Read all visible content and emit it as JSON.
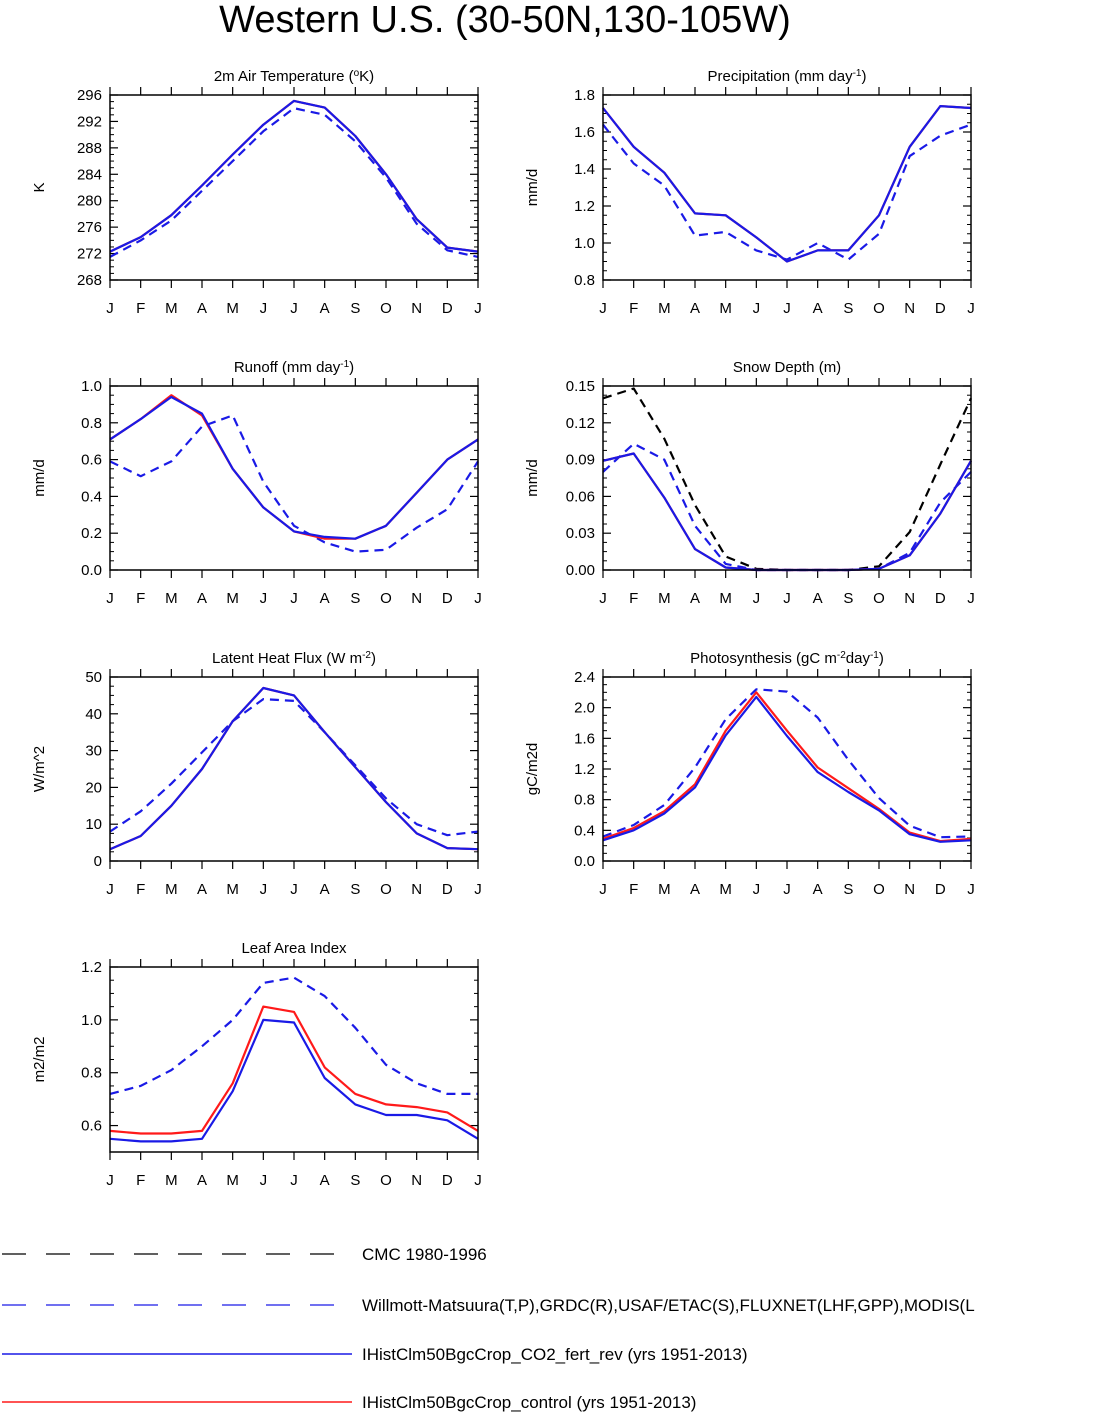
{
  "page": {
    "title": "Western U.S. (30-50N,130-105W)"
  },
  "months": [
    "J",
    "F",
    "M",
    "A",
    "M",
    "J",
    "J",
    "A",
    "S",
    "O",
    "N",
    "D",
    "J"
  ],
  "legend": [
    {
      "key": "cmc",
      "label": "CMC 1980-1996",
      "color": "#000000",
      "dash": true
    },
    {
      "key": "obs",
      "label": "Willmott-Matsuura(T,P),GRDC(R),USAF/ETAC(S),FLUXNET(LHF,GPP),MODIS(L",
      "color": "#1a1ae6",
      "dash": true
    },
    {
      "key": "co2",
      "label": "IHistClm50BgcCrop_CO2_fert_rev (yrs 1951-2013)",
      "color": "#1a1ae6",
      "dash": false
    },
    {
      "key": "ctl",
      "label": "IHistClm50BgcCrop_control (yrs 1951-2013)",
      "color": "#ff1a1a",
      "dash": false
    }
  ],
  "chart_data": [
    {
      "type": "line",
      "id": "temp",
      "title": "2m Air Temperature (",
      "title_sup": "o",
      "title_post": "K)",
      "ylabel": "K",
      "ylim": [
        268,
        296
      ],
      "yticks": [
        268,
        272,
        276,
        280,
        284,
        288,
        292,
        296
      ],
      "ydec": 0,
      "series": [
        {
          "key": "obs",
          "values": [
            271.5,
            274.0,
            277.0,
            281.5,
            286.0,
            290.5,
            294.0,
            293.0,
            289.0,
            283.5,
            276.5,
            272.5,
            271.5
          ]
        },
        {
          "key": "ctl",
          "values": [
            272.3,
            274.5,
            277.8,
            282.3,
            287.0,
            291.5,
            295.1,
            294.1,
            289.8,
            284.0,
            277.2,
            272.9,
            272.3
          ]
        },
        {
          "key": "co2",
          "values": [
            272.3,
            274.5,
            277.8,
            282.3,
            287.0,
            291.5,
            295.1,
            294.1,
            289.8,
            284.0,
            277.2,
            272.9,
            272.3
          ]
        }
      ]
    },
    {
      "type": "line",
      "id": "precip",
      "title": "Precipitation (mm day",
      "title_sup": "-1",
      "title_post": ")",
      "ylabel": "mm/d",
      "ylim": [
        0.8,
        1.8
      ],
      "yticks": [
        0.8,
        1.0,
        1.2,
        1.4,
        1.6,
        1.8
      ],
      "ydec": 1,
      "series": [
        {
          "key": "obs",
          "values": [
            1.64,
            1.43,
            1.31,
            1.04,
            1.06,
            0.96,
            0.91,
            1.0,
            0.91,
            1.05,
            1.47,
            1.58,
            1.64
          ]
        },
        {
          "key": "ctl",
          "values": [
            1.73,
            1.52,
            1.38,
            1.16,
            1.15,
            1.03,
            0.9,
            0.96,
            0.96,
            1.15,
            1.52,
            1.74,
            1.73
          ]
        },
        {
          "key": "co2",
          "values": [
            1.73,
            1.52,
            1.38,
            1.16,
            1.15,
            1.03,
            0.9,
            0.96,
            0.96,
            1.15,
            1.52,
            1.74,
            1.73
          ]
        }
      ]
    },
    {
      "type": "line",
      "id": "runoff",
      "title": "Runoff (mm day",
      "title_sup": "-1",
      "title_post": ")",
      "ylabel": "mm/d",
      "ylim": [
        0,
        1.0
      ],
      "yticks": [
        0.0,
        0.2,
        0.4,
        0.6,
        0.8,
        1.0
      ],
      "ydec": 1,
      "series": [
        {
          "key": "obs",
          "values": [
            0.59,
            0.51,
            0.59,
            0.78,
            0.84,
            0.48,
            0.24,
            0.15,
            0.1,
            0.11,
            0.23,
            0.33,
            0.59
          ]
        },
        {
          "key": "ctl",
          "values": [
            0.71,
            0.82,
            0.95,
            0.84,
            0.55,
            0.34,
            0.21,
            0.17,
            0.17,
            0.24,
            0.42,
            0.6,
            0.71
          ]
        },
        {
          "key": "co2",
          "values": [
            0.71,
            0.82,
            0.94,
            0.85,
            0.55,
            0.34,
            0.21,
            0.18,
            0.17,
            0.24,
            0.42,
            0.6,
            0.71
          ]
        }
      ]
    },
    {
      "type": "line",
      "id": "snow",
      "title": "Snow Depth (m)",
      "title_sup": "",
      "title_post": "",
      "ylabel": "mm/d",
      "ylim": [
        0,
        0.15
      ],
      "yticks": [
        0.0,
        0.03,
        0.06,
        0.09,
        0.12,
        0.15
      ],
      "ydec": 2,
      "series": [
        {
          "key": "cmc",
          "values": [
            0.14,
            0.148,
            0.107,
            0.053,
            0.011,
            0.001,
            0.0,
            0.0,
            0.0,
            0.003,
            0.031,
            0.086,
            0.14
          ]
        },
        {
          "key": "obs",
          "values": [
            0.08,
            0.103,
            0.09,
            0.036,
            0.005,
            0.0,
            0.0,
            0.0,
            0.0,
            0.001,
            0.014,
            0.055,
            0.08
          ]
        },
        {
          "key": "ctl",
          "values": [
            0.089,
            0.095,
            0.059,
            0.017,
            0.002,
            0.0,
            0.0,
            0.0,
            0.0,
            0.001,
            0.012,
            0.046,
            0.089
          ]
        },
        {
          "key": "co2",
          "values": [
            0.089,
            0.095,
            0.059,
            0.017,
            0.002,
            0.0,
            0.0,
            0.0,
            0.0,
            0.001,
            0.012,
            0.046,
            0.089
          ]
        }
      ]
    },
    {
      "type": "line",
      "id": "lhf",
      "title": "Latent Heat Flux (W m",
      "title_sup": "-2",
      "title_post": ")",
      "ylabel": "W/m^2",
      "ylim": [
        0,
        50
      ],
      "yticks": [
        0,
        10,
        20,
        30,
        40,
        50
      ],
      "ydec": 0,
      "series": [
        {
          "key": "obs",
          "values": [
            8.0,
            13.5,
            21.0,
            29.5,
            38.0,
            44.0,
            43.5,
            35.0,
            26.0,
            17.0,
            10.0,
            7.0,
            8.0
          ]
        },
        {
          "key": "ctl",
          "values": [
            3.2,
            6.8,
            15.0,
            25.0,
            38.0,
            47.0,
            45.0,
            35.0,
            25.5,
            16.0,
            7.5,
            3.5,
            3.2
          ]
        },
        {
          "key": "co2",
          "values": [
            3.2,
            6.8,
            15.0,
            25.0,
            38.0,
            47.0,
            45.0,
            35.0,
            25.5,
            16.0,
            7.5,
            3.5,
            3.2
          ]
        }
      ]
    },
    {
      "type": "line",
      "id": "gpp",
      "title": "Photosynthesis (gC m",
      "title_sup": "-2",
      "title_post": "day",
      "title_sup2": "-1",
      "title_post2": ")",
      "ylabel": "gC/m2d",
      "ylim": [
        0,
        2.4
      ],
      "yticks": [
        0.0,
        0.4,
        0.8,
        1.2,
        1.6,
        2.0,
        2.4
      ],
      "ydec": 1,
      "series": [
        {
          "key": "obs",
          "values": [
            0.32,
            0.47,
            0.73,
            1.22,
            1.85,
            2.24,
            2.21,
            1.87,
            1.32,
            0.82,
            0.46,
            0.31,
            0.32
          ]
        },
        {
          "key": "ctl",
          "values": [
            0.29,
            0.43,
            0.65,
            1.0,
            1.7,
            2.2,
            1.7,
            1.22,
            0.95,
            0.68,
            0.37,
            0.26,
            0.29
          ]
        },
        {
          "key": "co2",
          "values": [
            0.27,
            0.4,
            0.62,
            0.96,
            1.64,
            2.14,
            1.63,
            1.16,
            0.9,
            0.66,
            0.35,
            0.25,
            0.27
          ]
        }
      ]
    },
    {
      "type": "line",
      "id": "lai",
      "title": "Leaf Area Index",
      "title_sup": "",
      "title_post": "",
      "ylabel": "m2/m2",
      "ylim": [
        0.5,
        1.2
      ],
      "yticks": [
        0.6,
        0.8,
        1.0,
        1.2
      ],
      "ydec": 1,
      "series": [
        {
          "key": "obs",
          "values": [
            0.72,
            0.75,
            0.81,
            0.9,
            1.0,
            1.14,
            1.16,
            1.09,
            0.97,
            0.83,
            0.76,
            0.72,
            0.72
          ]
        },
        {
          "key": "ctl",
          "values": [
            0.58,
            0.57,
            0.57,
            0.58,
            0.76,
            1.05,
            1.03,
            0.82,
            0.72,
            0.68,
            0.67,
            0.65,
            0.58
          ]
        },
        {
          "key": "co2",
          "values": [
            0.55,
            0.54,
            0.54,
            0.55,
            0.73,
            1.0,
            0.99,
            0.78,
            0.68,
            0.64,
            0.64,
            0.62,
            0.55
          ]
        }
      ]
    }
  ]
}
